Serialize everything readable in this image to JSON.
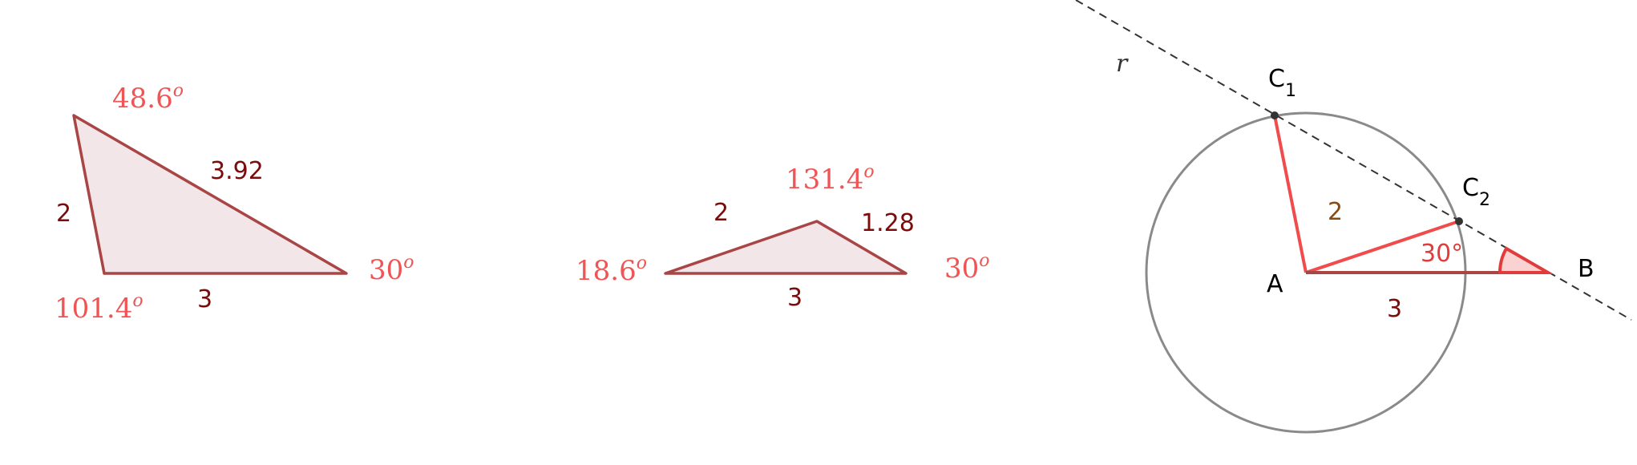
{
  "colors": {
    "triangle_fill": "#f2e6e8",
    "triangle_stroke": "#a94545",
    "angle_label": "#f05454",
    "side_label": "#7a0c0c",
    "red_segment": "#f04c4c",
    "circle": "#8a8a8a",
    "dashed_line": "#333333",
    "point": "#333333",
    "point_label": "#000000",
    "side_label_brown": "#8b4a10"
  },
  "triangle1": {
    "angle_top": "48.6",
    "angle_bottom_left": "101.4",
    "angle_right": "30",
    "angle_mark": "o",
    "side_left": "2",
    "side_hyp": "3.92",
    "side_bottom": "3"
  },
  "triangle2": {
    "angle_top": "131.4",
    "angle_left": "18.6",
    "angle_right": "30",
    "angle_mark": "o",
    "side_left": "2",
    "side_right": "1.28",
    "side_bottom": "3"
  },
  "construction": {
    "line_label": "r",
    "point_A": "A",
    "point_B": "B",
    "point_C1": "C",
    "point_C1_sub": "1",
    "point_C2": "C",
    "point_C2_sub": "2",
    "radius_label": "2",
    "base_label": "3",
    "angle_label": "30°"
  }
}
